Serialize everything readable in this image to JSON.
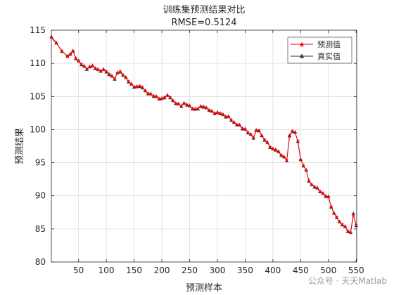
{
  "chart_data": {
    "type": "line",
    "title": "训练集预测结果对比",
    "subtitle": "RMSE=0.5124",
    "xlabel": "预测样本",
    "ylabel": "预测结果",
    "xlim": [
      1,
      551
    ],
    "ylim": [
      80,
      115
    ],
    "xticks": [
      50,
      100,
      150,
      200,
      250,
      300,
      350,
      400,
      450,
      500,
      550
    ],
    "yticks": [
      80,
      85,
      90,
      95,
      100,
      105,
      110,
      115
    ],
    "grid": true,
    "legend_position": "top-right",
    "colors": {
      "predicted": "#ff0000",
      "actual": "#333333"
    },
    "x": [
      1,
      10,
      20,
      30,
      35,
      40,
      45,
      50,
      55,
      60,
      65,
      70,
      75,
      80,
      85,
      90,
      95,
      100,
      105,
      110,
      115,
      120,
      125,
      130,
      135,
      140,
      145,
      150,
      155,
      160,
      165,
      170,
      175,
      180,
      185,
      190,
      195,
      200,
      205,
      210,
      215,
      220,
      225,
      230,
      235,
      240,
      245,
      250,
      255,
      260,
      265,
      270,
      275,
      280,
      285,
      290,
      295,
      300,
      305,
      310,
      315,
      320,
      325,
      330,
      335,
      340,
      345,
      350,
      355,
      360,
      365,
      370,
      375,
      380,
      385,
      390,
      395,
      400,
      405,
      410,
      415,
      420,
      425,
      430,
      435,
      440,
      445,
      450,
      455,
      460,
      465,
      470,
      475,
      480,
      485,
      490,
      495,
      500,
      505,
      510,
      515,
      520,
      525,
      530,
      535,
      540,
      545,
      550
    ],
    "series": [
      {
        "name": "预测值",
        "values": [
          113.9,
          113.0,
          111.9,
          111.0,
          111.3,
          111.8,
          110.8,
          110.3,
          109.9,
          109.5,
          109.2,
          109.4,
          109.7,
          109.3,
          109.0,
          108.9,
          109.0,
          108.8,
          108.4,
          108.0,
          107.7,
          108.5,
          108.8,
          108.3,
          107.8,
          107.3,
          106.8,
          106.5,
          106.4,
          106.6,
          106.4,
          105.8,
          105.5,
          105.3,
          105.1,
          104.9,
          104.7,
          104.6,
          104.9,
          105.1,
          104.9,
          104.3,
          104.0,
          103.8,
          103.6,
          103.9,
          103.8,
          103.5,
          103.2,
          103.0,
          103.2,
          103.4,
          103.5,
          103.2,
          103.0,
          102.7,
          102.5,
          102.5,
          102.5,
          102.2,
          102.0,
          101.9,
          101.5,
          101.0,
          100.8,
          100.6,
          100.2,
          100.0,
          99.6,
          99.2,
          98.8,
          99.8,
          99.9,
          99.0,
          98.5,
          98.0,
          97.4,
          97.0,
          97.0,
          96.6,
          96.2,
          95.8,
          95.4,
          98.9,
          99.8,
          99.5,
          98.3,
          95.4,
          94.6,
          93.8,
          92.3,
          91.6,
          91.4,
          91.1,
          90.7,
          90.3,
          90.0,
          89.8,
          88.4,
          87.3,
          86.8,
          86.0,
          85.7,
          85.3,
          84.7,
          84.4,
          87.1,
          85.6
        ]
      },
      {
        "name": "真实值",
        "values": [
          114.0,
          113.1,
          111.8,
          111.1,
          111.4,
          111.9,
          110.7,
          110.4,
          109.8,
          109.6,
          109.1,
          109.5,
          109.6,
          109.2,
          109.1,
          108.8,
          109.1,
          108.7,
          108.3,
          108.1,
          107.6,
          108.6,
          108.7,
          108.2,
          107.9,
          107.2,
          106.9,
          106.4,
          106.5,
          106.5,
          106.3,
          105.9,
          105.4,
          105.4,
          105.0,
          105.0,
          104.6,
          104.7,
          104.8,
          105.2,
          104.8,
          104.4,
          103.9,
          103.9,
          103.5,
          104.0,
          103.7,
          103.6,
          103.1,
          103.1,
          103.1,
          103.5,
          103.4,
          103.3,
          102.9,
          102.8,
          102.4,
          102.6,
          102.4,
          102.3,
          101.9,
          102.0,
          101.4,
          101.1,
          100.7,
          100.7,
          100.1,
          100.1,
          99.5,
          99.3,
          98.7,
          99.9,
          99.8,
          99.1,
          98.4,
          98.1,
          97.3,
          97.1,
          96.9,
          96.7,
          96.1,
          95.9,
          95.3,
          99.1,
          99.7,
          99.6,
          98.2,
          95.5,
          94.5,
          93.9,
          92.2,
          91.7,
          91.3,
          91.2,
          90.6,
          90.4,
          89.9,
          89.9,
          88.3,
          87.4,
          86.7,
          86.1,
          85.6,
          85.4,
          84.6,
          84.5,
          87.3,
          85.5
        ]
      }
    ]
  },
  "watermark": "公众号 · 天天Matlab"
}
